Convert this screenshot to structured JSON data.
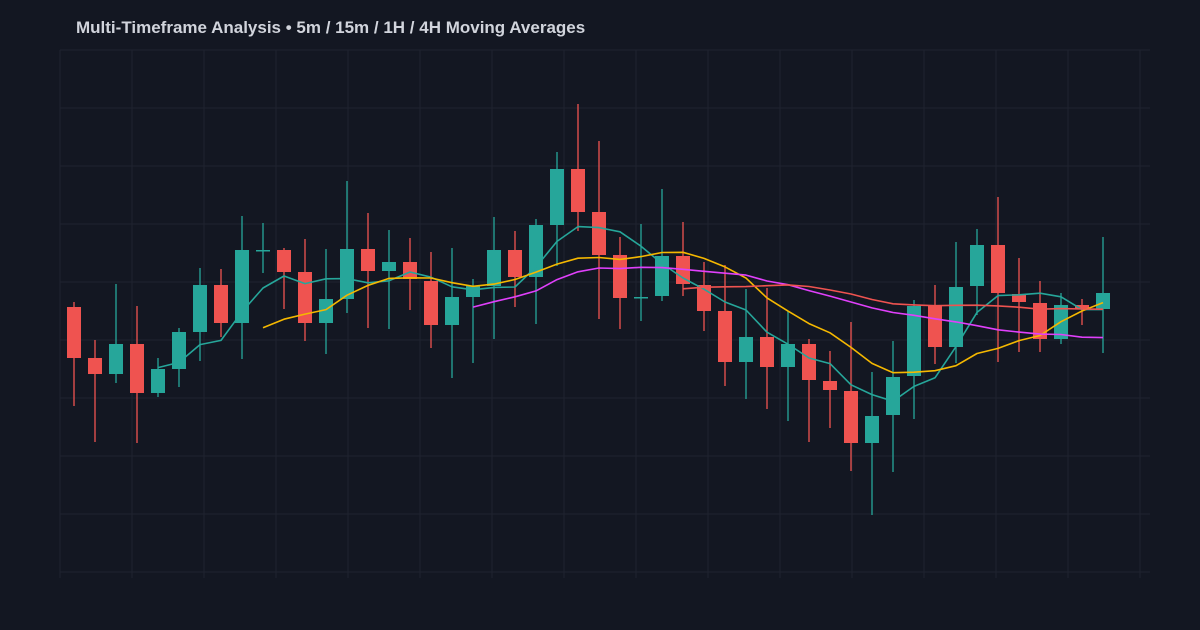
{
  "chart_data": {
    "type": "candlestick",
    "title": "Multi-Timeframe Analysis • 5m / 15m / 1H / 4H Moving Averages",
    "xlabel": "",
    "ylabel": "",
    "grid": true,
    "ylim": [
      2.8,
      55.0
    ],
    "colors": {
      "background": "#131722",
      "grid": "#1f2330",
      "up": "#26a69a",
      "down": "#ef5350",
      "title": "#d1d4dc"
    },
    "candles": [
      {
        "o": 29.3,
        "h": 29.8,
        "l": 19.4,
        "c": 24.2
      },
      {
        "o": 24.2,
        "h": 26.0,
        "l": 15.8,
        "c": 22.6
      },
      {
        "o": 22.6,
        "h": 31.6,
        "l": 21.7,
        "c": 25.6
      },
      {
        "o": 25.6,
        "h": 29.4,
        "l": 15.7,
        "c": 20.7
      },
      {
        "o": 20.7,
        "h": 24.2,
        "l": 20.3,
        "c": 23.1
      },
      {
        "o": 23.1,
        "h": 27.2,
        "l": 21.3,
        "c": 26.8
      },
      {
        "o": 26.8,
        "h": 33.2,
        "l": 23.9,
        "c": 31.5
      },
      {
        "o": 31.5,
        "h": 33.1,
        "l": 26.3,
        "c": 27.7
      },
      {
        "o": 27.7,
        "h": 38.4,
        "l": 24.1,
        "c": 35.0
      },
      {
        "o": 34.9,
        "h": 37.7,
        "l": 32.7,
        "c": 35.0
      },
      {
        "o": 35.0,
        "h": 35.2,
        "l": 29.1,
        "c": 32.8
      },
      {
        "o": 32.8,
        "h": 36.1,
        "l": 25.9,
        "c": 27.7
      },
      {
        "o": 27.7,
        "h": 35.1,
        "l": 24.6,
        "c": 30.1
      },
      {
        "o": 30.1,
        "h": 41.9,
        "l": 28.7,
        "c": 35.1
      },
      {
        "o": 35.1,
        "h": 38.7,
        "l": 27.2,
        "c": 32.9
      },
      {
        "o": 32.9,
        "h": 37.0,
        "l": 27.1,
        "c": 33.8
      },
      {
        "o": 33.8,
        "h": 36.2,
        "l": 29.0,
        "c": 32.1
      },
      {
        "o": 31.9,
        "h": 34.8,
        "l": 25.2,
        "c": 27.5
      },
      {
        "o": 27.5,
        "h": 35.2,
        "l": 22.2,
        "c": 30.3
      },
      {
        "o": 30.3,
        "h": 32.1,
        "l": 23.7,
        "c": 31.4
      },
      {
        "o": 31.4,
        "h": 38.3,
        "l": 26.1,
        "c": 35.0
      },
      {
        "o": 35.0,
        "h": 36.9,
        "l": 29.3,
        "c": 32.3
      },
      {
        "o": 32.3,
        "h": 38.1,
        "l": 27.6,
        "c": 37.5
      },
      {
        "o": 37.5,
        "h": 44.8,
        "l": 33.4,
        "c": 43.1
      },
      {
        "o": 43.1,
        "h": 49.6,
        "l": 36.9,
        "c": 38.8
      },
      {
        "o": 38.8,
        "h": 45.9,
        "l": 28.1,
        "c": 34.5
      },
      {
        "o": 34.5,
        "h": 36.3,
        "l": 27.1,
        "c": 30.2
      },
      {
        "o": 30.2,
        "h": 37.6,
        "l": 27.9,
        "c": 30.3
      },
      {
        "o": 30.4,
        "h": 41.1,
        "l": 29.9,
        "c": 34.4
      },
      {
        "o": 34.4,
        "h": 37.8,
        "l": 30.4,
        "c": 31.6
      },
      {
        "o": 31.5,
        "h": 33.8,
        "l": 26.9,
        "c": 28.9
      },
      {
        "o": 28.9,
        "h": 33.5,
        "l": 21.4,
        "c": 23.8
      },
      {
        "o": 23.8,
        "h": 31.1,
        "l": 20.1,
        "c": 26.3
      },
      {
        "o": 26.3,
        "h": 31.2,
        "l": 19.1,
        "c": 23.3
      },
      {
        "o": 23.3,
        "h": 28.9,
        "l": 17.9,
        "c": 25.6
      },
      {
        "o": 25.6,
        "h": 26.1,
        "l": 15.8,
        "c": 22.0
      },
      {
        "o": 21.9,
        "h": 24.9,
        "l": 17.2,
        "c": 21.0
      },
      {
        "o": 20.9,
        "h": 27.8,
        "l": 12.9,
        "c": 15.7
      },
      {
        "o": 15.7,
        "h": 22.8,
        "l": 8.5,
        "c": 18.4
      },
      {
        "o": 18.5,
        "h": 25.9,
        "l": 12.8,
        "c": 22.3
      },
      {
        "o": 22.4,
        "h": 30.0,
        "l": 18.1,
        "c": 29.4
      },
      {
        "o": 29.4,
        "h": 31.5,
        "l": 23.6,
        "c": 25.3
      },
      {
        "o": 25.3,
        "h": 35.8,
        "l": 23.7,
        "c": 31.3
      },
      {
        "o": 31.4,
        "h": 37.1,
        "l": 28.5,
        "c": 35.5
      },
      {
        "o": 35.5,
        "h": 40.3,
        "l": 23.8,
        "c": 30.7
      },
      {
        "o": 30.6,
        "h": 34.2,
        "l": 24.8,
        "c": 29.8
      },
      {
        "o": 29.7,
        "h": 31.9,
        "l": 24.8,
        "c": 26.1
      },
      {
        "o": 26.1,
        "h": 30.7,
        "l": 25.6,
        "c": 29.5
      },
      {
        "o": 29.5,
        "h": 30.1,
        "l": 27.5,
        "c": 29.1
      },
      {
        "o": 29.1,
        "h": 36.3,
        "l": 24.7,
        "c": 30.7
      }
    ],
    "moving_averages": [
      {
        "window": 5,
        "color": "#26a69a"
      },
      {
        "window": 10,
        "color": "#f5b800"
      },
      {
        "window": 20,
        "color": "#e040fb"
      },
      {
        "window": 30,
        "color": "#ef5350"
      }
    ]
  }
}
